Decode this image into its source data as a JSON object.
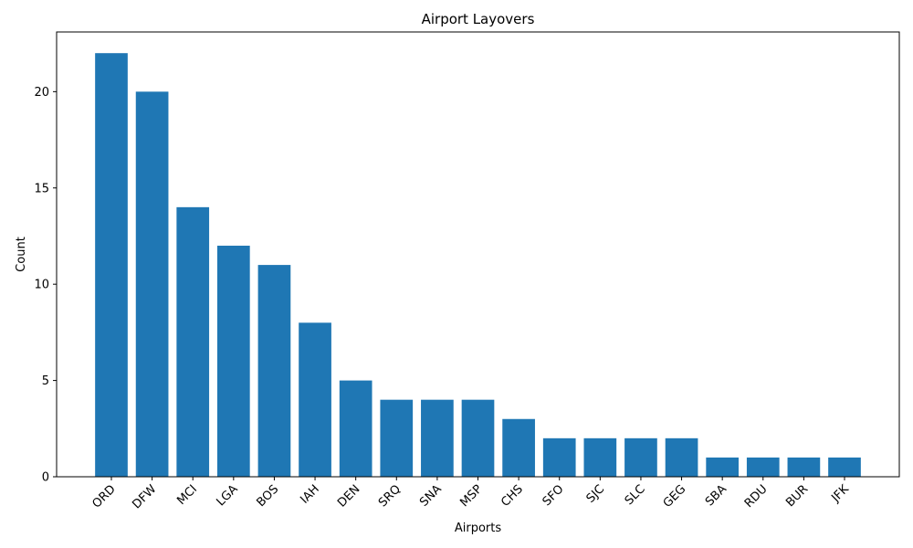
{
  "chart_data": {
    "type": "bar",
    "title": "Airport Layovers",
    "xlabel": "Airports",
    "ylabel": "Count",
    "categories": [
      "ORD",
      "DFW",
      "MCI",
      "LGA",
      "BOS",
      "IAH",
      "DEN",
      "SRQ",
      "SNA",
      "MSP",
      "CHS",
      "SFO",
      "SJC",
      "SLC",
      "GEG",
      "SBA",
      "RDU",
      "BUR",
      "JFK"
    ],
    "values": [
      22,
      20,
      14,
      12,
      11,
      8,
      5,
      4,
      4,
      4,
      3,
      2,
      2,
      2,
      2,
      1,
      1,
      1,
      1
    ],
    "ylim": [
      0,
      23.1
    ],
    "yticks": [
      0,
      5,
      10,
      15,
      20
    ],
    "grid": false,
    "bar_color": "#1f77b4"
  }
}
